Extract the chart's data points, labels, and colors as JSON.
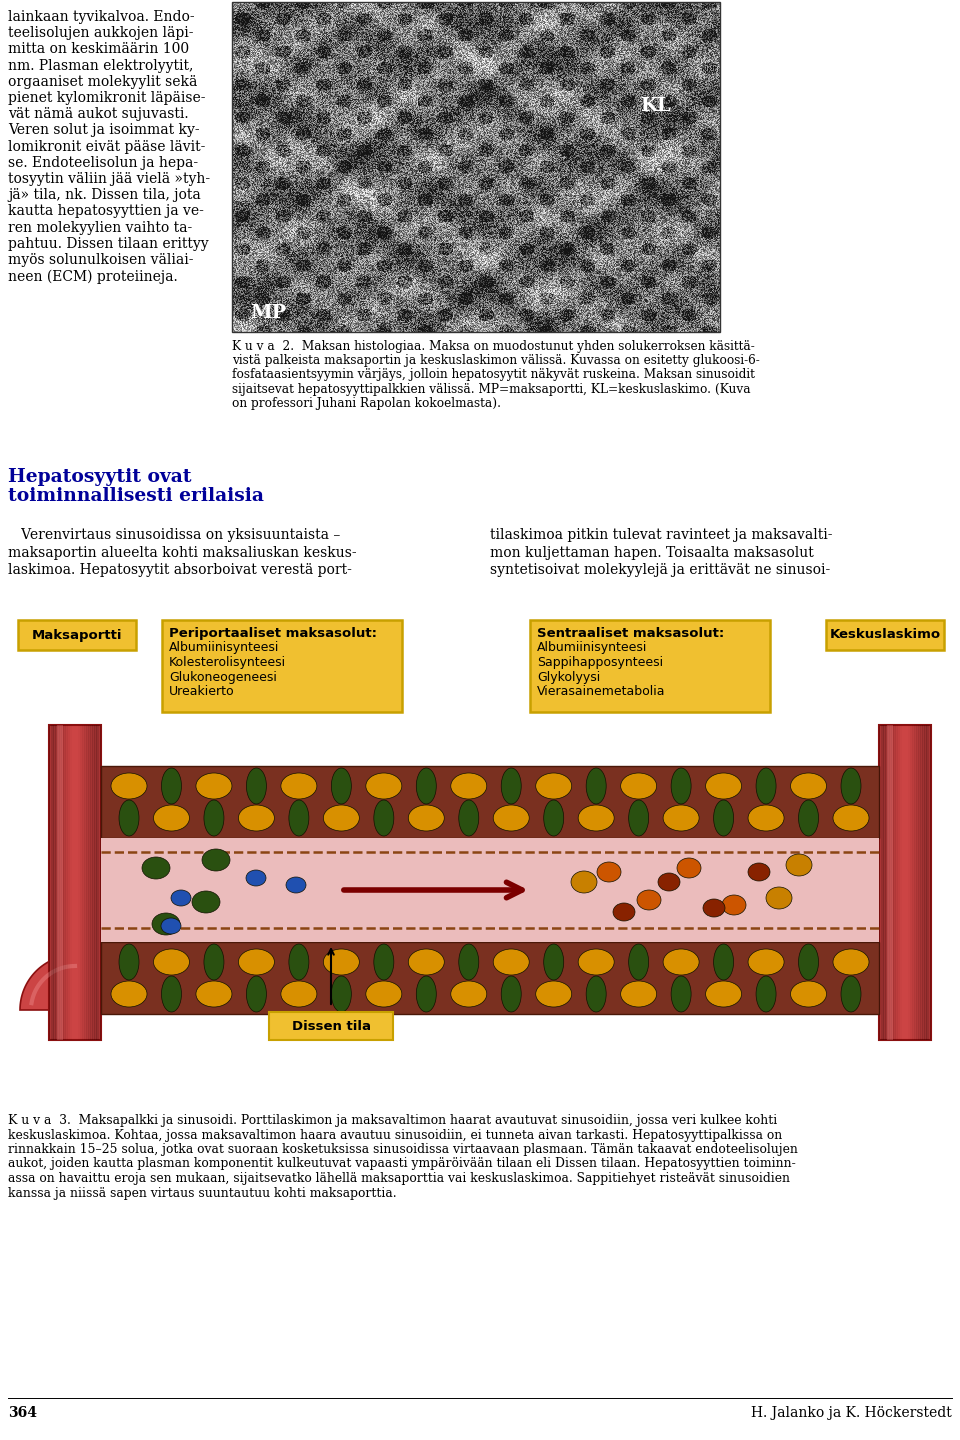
{
  "page_bg": "#ffffff",
  "left_text_lines": [
    "lainkaan tyvikalvoa. Endo-",
    "teelisolujen aukkojen läpi-",
    "mitta on keskimäärin 100",
    "nm. Plasman elektrolyytit,",
    "orgaaniset molekyylit sekä",
    "pienet kylomikronit läpäise-",
    "vät nämä aukot sujuvasti.",
    "Veren solut ja isoimmat ky-",
    "lomikronit eivät pääse lävit-",
    "se. Endoteelisolun ja hepa-",
    "tosyytin väliin jää vielä »tyh-",
    "jä» tila, nk. Dissen tila, jota",
    "kautta hepatosyyttien ja ve-",
    "ren molekyylien vaihto ta-",
    "pahtuu. Dissen tilaan erittyy",
    "myös solunulkoisen väliai-",
    "neen (ECM) proteiineja."
  ],
  "caption_lines": [
    "K u v a  2.  Maksan histologiaa. Maksa on muodostunut yhden solukerroksen käsittä-",
    "vistä palkeista maksaportin ja keskuslaskimon välissä. Kuvassa on esitetty glukoosi-6-",
    "fosfataasientsyymin värjäys, jolloin hepatosyytit näkyvät ruskeina. Maksan sinusoidit",
    "sijaitsevat hepatosyyttipalkkien välissä. MP=maksaportti, KL=keskuslaskimo. (Kuva",
    "on professori Juhani Rapolan kokoelmasta)."
  ],
  "section_heading_1": "Hepatosyytit ovat",
  "section_heading_2": "toiminnallisesti erilaisia",
  "body_col1": [
    "   Verenvirtaus sinusoidissa on yksisuuntaista –",
    "maksaportin alueelta kohti maksaliuskan keskus-",
    "laskimoa. Hepatosyytit absorboivat verestä port-"
  ],
  "body_col2": [
    "tilaskimoa pitkin tulevat ravinteet ja maksavalti-",
    "mon kuljettaman hapen. Toisaalta maksasolut",
    "syntetisoivat molekyylejä ja erittävät ne sinusoi-"
  ],
  "box_bg": "#f0c030",
  "box_border": "#c8a000",
  "box1_title": "Maksaportti",
  "box2_title": "Periportaaliset maksasolut:",
  "box2_lines": [
    "Albumiinisynteesi",
    "Kolesterolisynteesi",
    "Glukoneogeneesi",
    "Ureakierto"
  ],
  "box3_title": "Sentraaliset maksasolut:",
  "box3_lines": [
    "Albumiinisynteesi",
    "Sappihapposynteesi",
    "Glykolyysi",
    "Vierasainemetabolia"
  ],
  "box4_title": "Keskuslaskimo",
  "dissen_label": "Dissen tila",
  "arrow_color": "#7B0000",
  "sinusoid_bg": "#ebbcbc",
  "hepatocyte_bg": "#7a3020",
  "hepatocyte_border": "#4a1808",
  "vessel_color_mid": "#cc4444",
  "vessel_color_dark": "#8b1010",
  "vessel_color_light": "#e86060",
  "cell_yellow": "#d89000",
  "cell_darkgreen": "#2a5010",
  "cell_blue": "#2050b0",
  "cell_orange": "#cc5500",
  "cell_red": "#882200",
  "cell_yellow2": "#c88000",
  "endo_color": "#8B4513",
  "page_number": "364",
  "authors": "H. Jalanko ja K. Höckerstedt",
  "mp_label": "MP",
  "kl_label": "KL",
  "fig3_lines": [
    "K u v a  3.  Maksapalkki ja sinusoidi. Porttilaskimon ja maksavaltimon haarat avautuvat sinusoidiin, jossa veri kulkee kohti",
    "keskuslaskimoa. Kohtaa, jossa maksavaltimon haara avautuu sinusoidiin, ei tunneta aivan tarkasti. Hepatosyyttipalkissa on",
    "rinnakkain 15–25 solua, jotka ovat suoraan kosketuksissa sinusoidissa virtaavaan plasmaan. Tämän takaavat endoteelisolujen",
    "aukot, joiden kautta plasman komponentit kulkeutuvat vapaasti ympäröivään tilaan eli Dissen tilaan. Hepatosyyttien toiminn-",
    "assa on havaittu eroja sen mukaan, sijaitsevatko lähellä maksaporttia vai keskuslaskimoa. Sappitiehyet risteävät sinusoidien",
    "kanssa ja niissä sapen virtaus suuntautuu kohti maksaporttia."
  ]
}
